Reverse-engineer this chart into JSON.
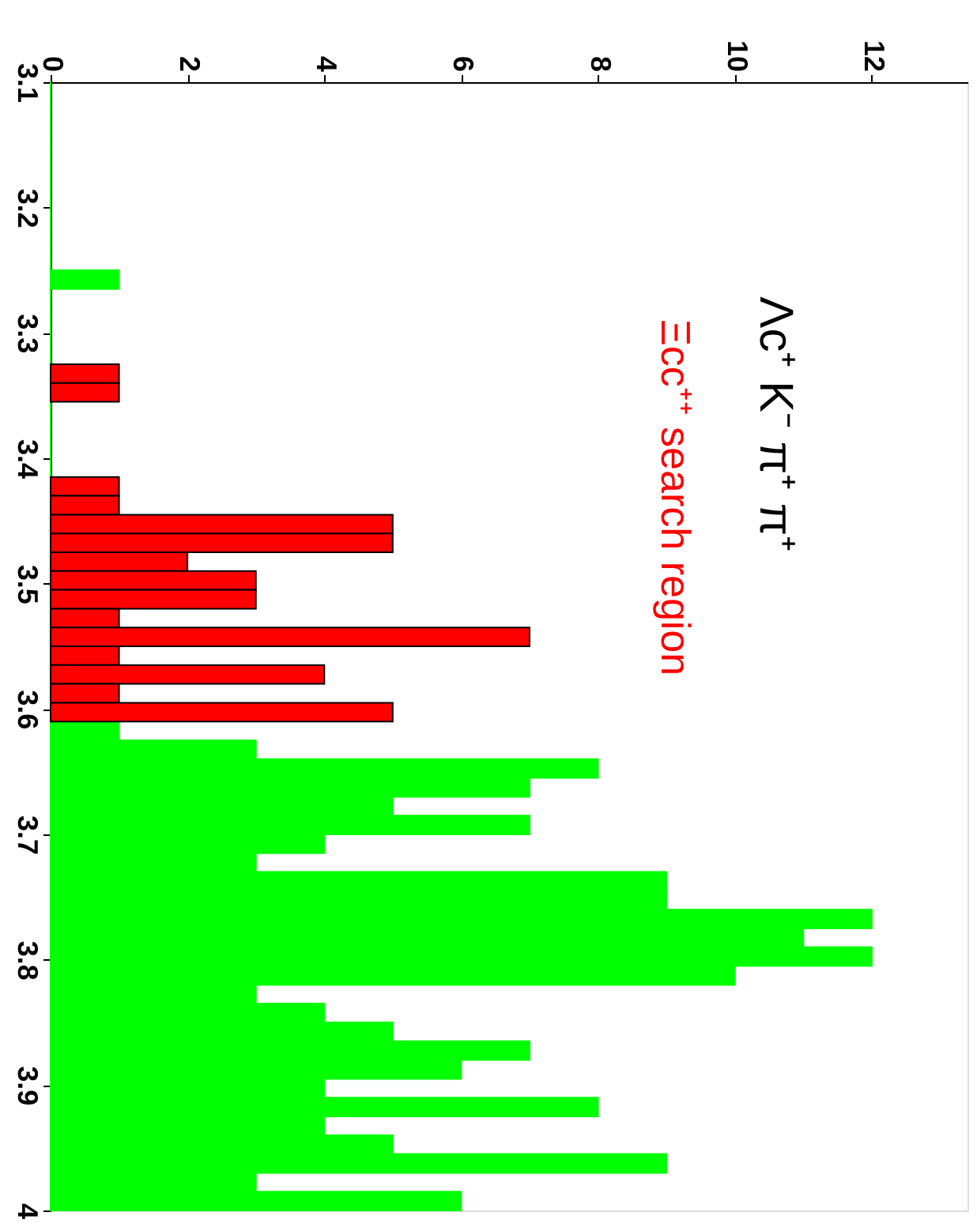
{
  "chart_data": {
    "type": "histogram",
    "orientation": "horizontal",
    "title": "Λc⁺ K⁻ π⁺ π⁺",
    "bins": [
      3.1,
      3.115,
      3.13,
      3.145,
      3.16,
      3.175,
      3.19,
      3.205,
      3.22,
      3.235,
      3.25,
      3.265,
      3.28,
      3.295,
      3.31,
      3.325,
      3.34,
      3.355,
      3.37,
      3.385,
      3.4,
      3.415,
      3.43,
      3.445,
      3.46,
      3.475,
      3.49,
      3.505,
      3.52,
      3.535,
      3.55,
      3.565,
      3.58,
      3.595,
      3.61,
      3.625,
      3.64,
      3.655,
      3.67,
      3.685,
      3.7,
      3.715,
      3.73,
      3.745,
      3.76,
      3.775,
      3.79,
      3.805,
      3.82,
      3.835,
      3.85,
      3.865,
      3.88,
      3.895,
      3.91,
      3.925,
      3.94,
      3.955,
      3.97,
      3.985,
      4.0
    ],
    "series": [
      {
        "color": "#00ff00",
        "values": [
          0,
          0,
          0,
          0,
          0,
          0,
          0,
          0,
          0,
          0,
          1,
          0,
          0,
          0,
          0,
          null,
          null,
          0,
          0,
          0,
          0,
          null,
          null,
          null,
          null,
          null,
          null,
          null,
          null,
          null,
          null,
          null,
          null,
          null,
          1,
          3,
          8,
          7,
          5,
          7,
          4,
          3,
          9,
          9,
          12,
          11,
          12,
          10,
          3,
          4,
          5,
          7,
          6,
          4,
          8,
          4,
          5,
          9,
          3,
          6
        ]
      },
      {
        "name": "Ξcc⁺⁺ search region",
        "color": "#ff0000",
        "values": [
          null,
          null,
          null,
          null,
          null,
          null,
          null,
          null,
          null,
          null,
          null,
          null,
          null,
          null,
          null,
          1,
          1,
          null,
          null,
          null,
          null,
          1,
          1,
          5,
          5,
          2,
          3,
          3,
          1,
          7,
          1,
          4,
          1,
          5,
          null,
          null,
          null,
          null,
          null,
          null,
          null,
          null,
          null,
          null,
          null,
          null,
          null,
          null,
          null,
          null,
          null,
          null,
          null,
          null,
          null,
          null,
          null,
          null,
          null,
          null
        ]
      }
    ],
    "ylim": [
      4,
      3.1
    ],
    "yticks": [
      3.1,
      3.2,
      3.3,
      3.4,
      3.5,
      3.6,
      3.7,
      3.8,
      3.9,
      4
    ],
    "xlim": [
      0,
      13.4
    ],
    "xticks": [
      0,
      2,
      4,
      6,
      8,
      10,
      12
    ],
    "grid": false
  }
}
